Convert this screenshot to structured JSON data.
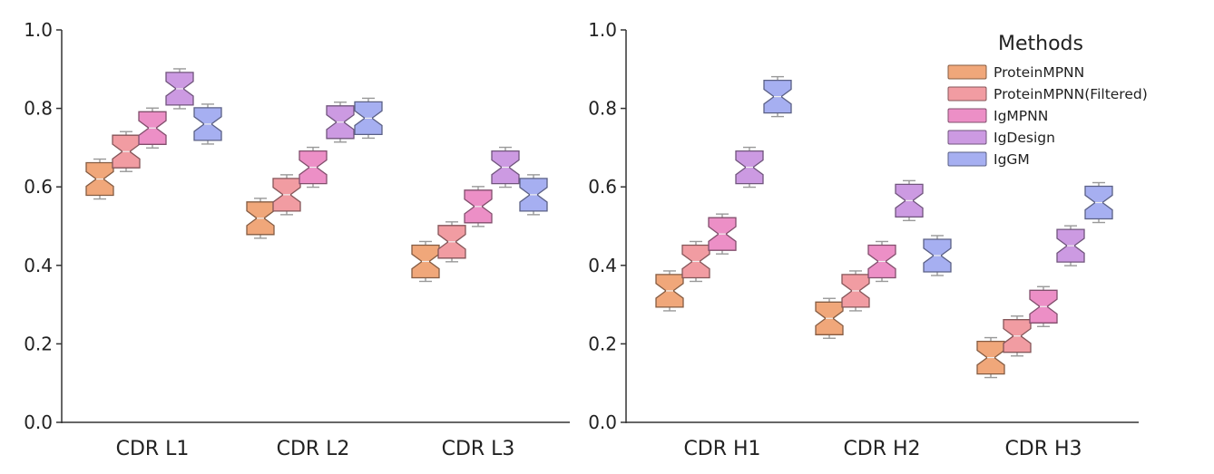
{
  "chart_data": [
    {
      "type": "box",
      "panel": "left",
      "ylim": [
        0,
        1
      ],
      "yticks": [
        "0.0",
        "0.2",
        "0.4",
        "0.6",
        "0.8",
        "1.0"
      ],
      "categories": [
        "CDR L1",
        "CDR L2",
        "CDR L3"
      ],
      "series": [
        {
          "name": "ProteinMPNN",
          "color": "#f0a77a",
          "values": [
            0.62,
            0.52,
            0.41
          ]
        },
        {
          "name": "ProteinMPNN(Filtered)",
          "color": "#f19ca2",
          "values": [
            0.69,
            0.58,
            0.46
          ]
        },
        {
          "name": "IgMPNN",
          "color": "#ec8fc6",
          "values": [
            0.75,
            0.65,
            0.55
          ]
        },
        {
          "name": "IgDesign",
          "color": "#cc9ae2",
          "values": [
            0.85,
            0.765,
            0.65
          ]
        },
        {
          "name": "IgGM",
          "color": "#a6aff1",
          "values": [
            0.76,
            0.775,
            0.58
          ]
        }
      ]
    },
    {
      "type": "box",
      "panel": "right",
      "ylim": [
        0,
        1
      ],
      "yticks": [
        "0.0",
        "0.2",
        "0.4",
        "0.6",
        "0.8",
        "1.0"
      ],
      "categories": [
        "CDR H1",
        "CDR H2",
        "CDR H3"
      ],
      "series": [
        {
          "name": "ProteinMPNN",
          "color": "#f0a77a",
          "values": [
            0.335,
            0.265,
            0.165
          ]
        },
        {
          "name": "ProteinMPNN(Filtered)",
          "color": "#f19ca2",
          "values": [
            0.41,
            0.335,
            0.22
          ]
        },
        {
          "name": "IgMPNN",
          "color": "#ec8fc6",
          "values": [
            0.48,
            0.41,
            0.295
          ]
        },
        {
          "name": "IgDesign",
          "color": "#cc9ae2",
          "values": [
            0.65,
            0.565,
            0.45
          ]
        },
        {
          "name": "IgGM",
          "color": "#a6aff1",
          "values": [
            0.83,
            0.425,
            0.56
          ]
        }
      ]
    }
  ],
  "legend": {
    "title": "Methods",
    "placement": "top-right",
    "items": [
      "ProteinMPNN",
      "ProteinMPNN(Filtered)",
      "IgMPNN",
      "IgDesign",
      "IgGM"
    ]
  }
}
